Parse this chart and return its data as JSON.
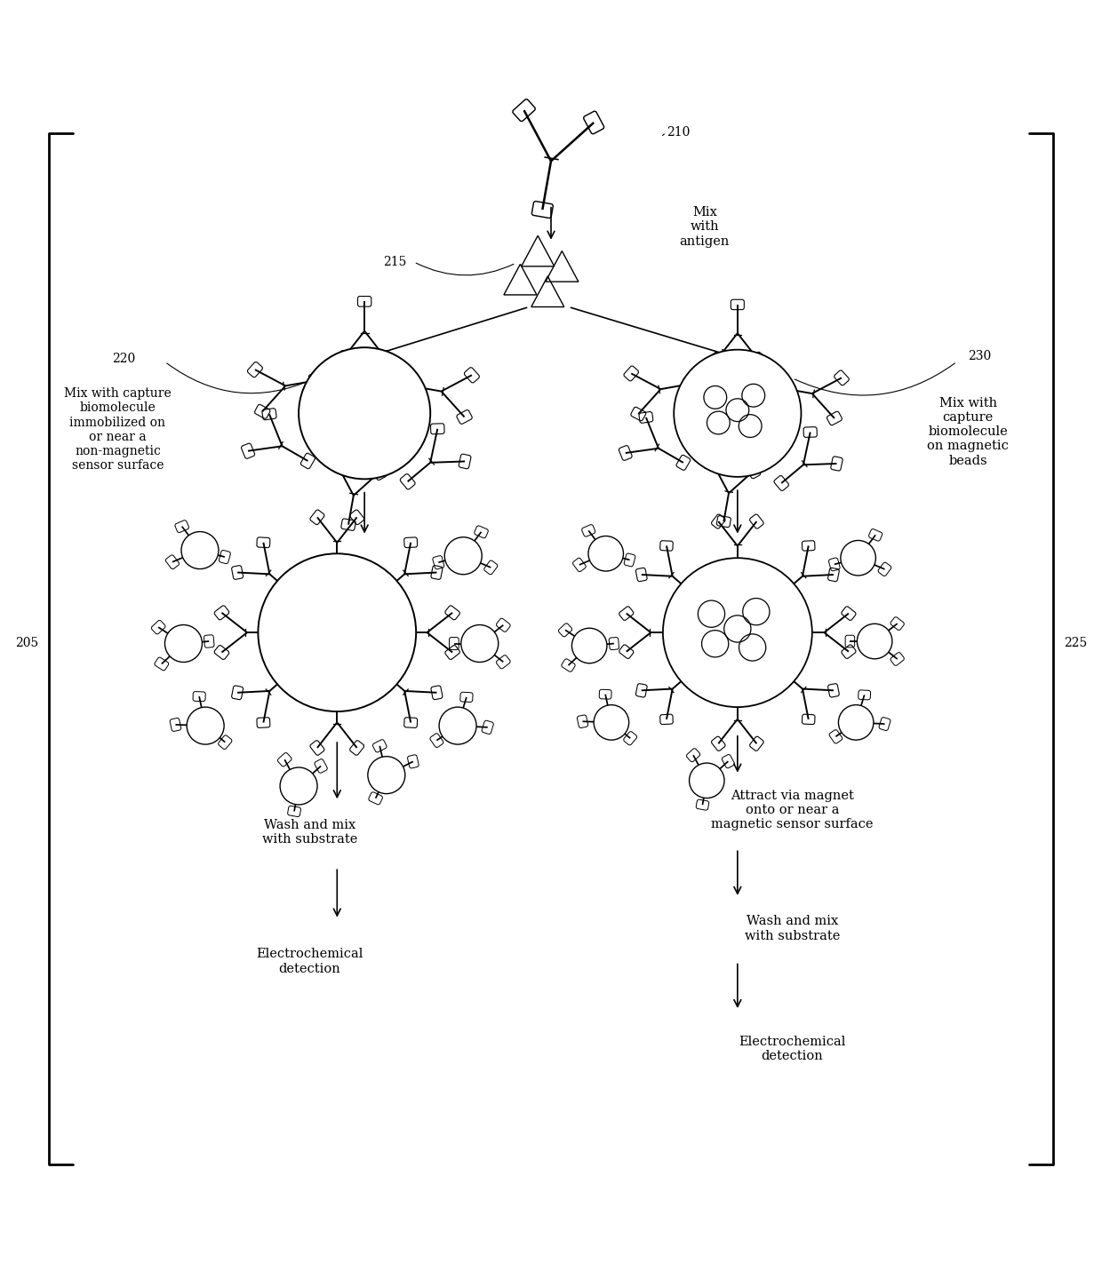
{
  "bg_color": "#ffffff",
  "line_color": "#000000",
  "figure_width": 12.4,
  "figure_height": 14.49,
  "text_content": {
    "mix_antigen": "Mix\nwith\nantigen",
    "mix_capture_left": "Mix with capture\nbiomolecule\nimmobilized on\nor near a\nnon-magnetic\nsensor surface",
    "mix_capture_right": "Mix with\ncapture\nbiomolecule\non magnetic\nbeads",
    "attract_magnet": "Attract via magnet\nonto or near a\nmagnetic sensor surface",
    "wash_left": "Wash and mix\nwith substrate",
    "wash_right": "Wash and mix\nwith substrate",
    "electrochemical_left": "Electrochemical\ndetection",
    "electrochemical_right": "Electrochemical\ndetection"
  },
  "fontsize": 10.5,
  "small_fontsize": 9.5
}
